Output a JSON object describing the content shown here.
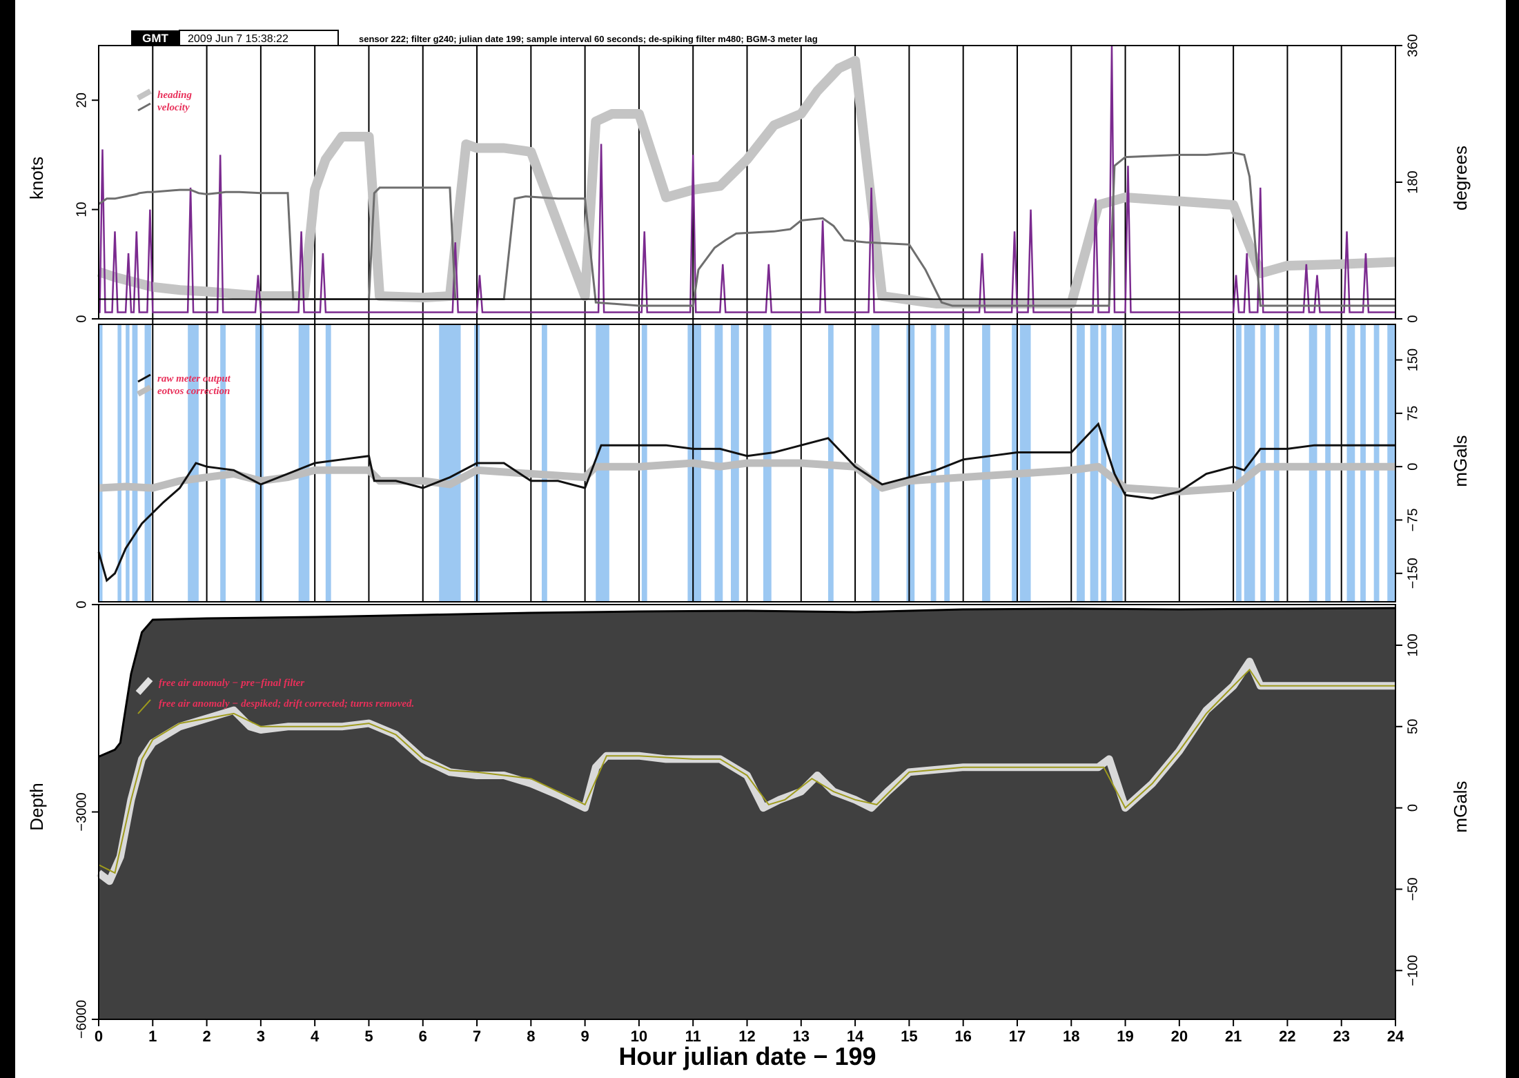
{
  "header": {
    "badge": "GMT",
    "timestamp": "2009 Jun  7 15:38:22",
    "caption": "sensor 222; filter g240; julian date 199; sample interval 60 seconds; de-spiking filter m480; BGM-3 meter lag"
  },
  "colors": {
    "velocity": "#6e6e6e",
    "heading": "#c4c4c4",
    "spikes": "#7b2a8f",
    "raw": "#111111",
    "eotvos": "#bdbdbd",
    "shade": "#9cc8f2",
    "bathy_fill": "#404040",
    "annotation": "#e8305a",
    "faa_final": "#9e9a1c"
  },
  "chart_data": [
    {
      "type": "line",
      "ylabel": "knots",
      "ylabel_right": "degrees",
      "ylim": [
        0,
        25
      ],
      "yticks": [
        0,
        10,
        20
      ],
      "ylim_right": [
        0,
        360
      ],
      "yticks_right": [
        0,
        180,
        360
      ],
      "grid": true,
      "legend_position": "top-left",
      "legend": [
        "heading",
        "velocity"
      ],
      "hline": 1.8,
      "series": [
        {
          "name": "velocity",
          "axis": "left",
          "x": [
            0,
            0.15,
            0.3,
            0.7,
            0.75,
            0.9,
            1.0,
            1.5,
            1.7,
            1.85,
            2.0,
            2.2,
            2.35,
            2.6,
            3.0,
            3.5,
            3.6,
            3.8,
            4.0,
            5.0,
            5.1,
            5.2,
            5.5,
            6.0,
            6.5,
            6.6,
            6.8,
            7.5,
            7.7,
            7.9,
            8.5,
            9.0,
            9.2,
            10.0,
            11.0,
            11.1,
            11.4,
            11.6,
            11.8,
            12.5,
            12.8,
            13.0,
            13.4,
            13.6,
            13.8,
            14.2,
            15.0,
            15.3,
            15.6,
            15.8,
            17.0,
            18.0,
            18.7,
            18.8,
            19.0,
            20.0,
            20.5,
            21.0,
            21.2,
            21.3,
            21.5,
            22.0,
            23.0,
            24.0
          ],
          "values": [
            10.5,
            11.0,
            11.0,
            11.4,
            11.5,
            11.6,
            11.6,
            11.8,
            11.8,
            11.5,
            11.4,
            11.5,
            11.6,
            11.6,
            11.5,
            11.5,
            1.8,
            1.8,
            1.8,
            1.8,
            11.5,
            12.0,
            12.0,
            12.0,
            12.0,
            1.8,
            1.8,
            1.8,
            11.0,
            11.2,
            11.0,
            11.0,
            1.5,
            1.2,
            1.2,
            4.5,
            6.5,
            7.2,
            7.8,
            8.0,
            8.2,
            9.0,
            9.2,
            8.5,
            7.2,
            7.0,
            6.8,
            4.5,
            1.5,
            1.2,
            1.2,
            1.2,
            1.2,
            14.0,
            14.8,
            15.0,
            15.0,
            15.2,
            15.0,
            13.0,
            1.2,
            1.2,
            1.2,
            1.2
          ]
        },
        {
          "name": "heading",
          "axis": "right",
          "x": [
            0,
            0.3,
            1.0,
            1.5,
            2.0,
            2.5,
            3.0,
            3.5,
            3.8,
            4.0,
            4.2,
            4.5,
            5.0,
            5.2,
            6.0,
            6.5,
            6.8,
            7.0,
            7.5,
            8.0,
            9.0,
            9.2,
            9.5,
            10.0,
            10.5,
            11.0,
            11.5,
            12.0,
            12.5,
            13.0,
            13.3,
            13.7,
            14.0,
            14.5,
            15.0,
            15.5,
            16.0,
            17.0,
            18.0,
            18.5,
            19.0,
            20.0,
            21.0,
            21.5,
            22.0,
            23.0,
            24.0
          ],
          "values": [
            62,
            55,
            42,
            38,
            36,
            33,
            30,
            30,
            30,
            170,
            210,
            240,
            240,
            30,
            28,
            30,
            230,
            225,
            225,
            220,
            30,
            260,
            270,
            270,
            160,
            170,
            175,
            210,
            255,
            270,
            300,
            330,
            340,
            30,
            25,
            20,
            20,
            20,
            20,
            150,
            160,
            155,
            150,
            60,
            70,
            72,
            75
          ]
        }
      ],
      "spikes": {
        "name": "spike detector",
        "times": [
          0.07,
          0.3,
          0.55,
          0.7,
          0.95,
          1.7,
          2.25,
          2.95,
          3.75,
          4.15,
          6.6,
          7.05,
          9.3,
          10.1,
          11.0,
          11.55,
          12.4,
          13.4,
          14.3,
          16.35,
          16.95,
          17.25,
          18.45,
          18.75,
          19.05,
          21.05,
          21.25,
          21.5,
          22.35,
          22.55,
          23.1,
          23.45
        ],
        "heights": [
          15.5,
          8,
          6,
          8,
          10,
          12,
          15,
          4,
          8,
          6,
          7,
          4,
          16,
          8,
          15,
          5,
          5,
          9,
          12,
          6,
          8,
          10,
          11,
          25,
          14,
          4,
          6,
          12,
          5,
          4,
          8,
          6
        ]
      }
    },
    {
      "type": "line",
      "ylabel_right": "mGals",
      "ylim": [
        -190,
        200
      ],
      "yticks_right": [
        -150,
        -75,
        0,
        75,
        150
      ],
      "legend_position": "top-left",
      "legend": [
        "raw meter output",
        "eotvos correction"
      ],
      "shaded_intervals": [
        [
          0.0,
          0.07
        ],
        [
          0.35,
          0.42
        ],
        [
          0.5,
          0.57
        ],
        [
          0.62,
          0.72
        ],
        [
          0.85,
          0.97
        ],
        [
          1.65,
          1.85
        ],
        [
          2.25,
          2.35
        ],
        [
          2.9,
          3.05
        ],
        [
          3.7,
          3.9
        ],
        [
          4.2,
          4.3
        ],
        [
          6.3,
          6.7
        ],
        [
          6.95,
          7.05
        ],
        [
          8.2,
          8.3
        ],
        [
          9.2,
          9.45
        ],
        [
          10.05,
          10.15
        ],
        [
          10.9,
          11.15
        ],
        [
          11.4,
          11.55
        ],
        [
          11.7,
          11.85
        ],
        [
          12.3,
          12.45
        ],
        [
          13.5,
          13.6
        ],
        [
          14.3,
          14.45
        ],
        [
          14.95,
          15.1
        ],
        [
          15.4,
          15.5
        ],
        [
          15.65,
          15.75
        ],
        [
          16.35,
          16.5
        ],
        [
          16.9,
          17.0
        ],
        [
          17.05,
          17.25
        ],
        [
          18.1,
          18.25
        ],
        [
          18.35,
          18.5
        ],
        [
          18.55,
          18.65
        ],
        [
          18.75,
          18.95
        ],
        [
          21.05,
          21.15
        ],
        [
          21.2,
          21.4
        ],
        [
          21.5,
          21.6
        ],
        [
          21.75,
          21.85
        ],
        [
          22.4,
          22.55
        ],
        [
          22.7,
          22.8
        ],
        [
          23.1,
          23.25
        ],
        [
          23.35,
          23.45
        ],
        [
          23.6,
          23.7
        ],
        [
          23.85,
          24.0
        ]
      ],
      "series": [
        {
          "name": "raw meter output",
          "x": [
            0,
            0.15,
            0.3,
            0.5,
            0.8,
            1.2,
            1.5,
            1.8,
            2.0,
            2.5,
            3.0,
            3.5,
            4.0,
            4.5,
            5.0,
            5.1,
            5.5,
            6.0,
            6.5,
            7.0,
            7.5,
            8.0,
            8.5,
            9.0,
            9.3,
            9.5,
            10.0,
            10.5,
            11.0,
            11.5,
            12.0,
            12.5,
            13.0,
            13.5,
            14.0,
            14.5,
            15.0,
            15.5,
            16.0,
            16.5,
            17.0,
            17.5,
            18.0,
            18.5,
            18.8,
            19.0,
            19.5,
            20.0,
            20.5,
            21.0,
            21.2,
            21.5,
            22.0,
            22.5,
            23.0,
            23.5,
            24.0
          ],
          "values": [
            -120,
            -160,
            -150,
            -115,
            -80,
            -50,
            -30,
            5,
            0,
            -5,
            -25,
            -10,
            5,
            10,
            15,
            -20,
            -20,
            -30,
            -15,
            5,
            5,
            -20,
            -20,
            -30,
            30,
            30,
            30,
            30,
            25,
            25,
            15,
            20,
            30,
            40,
            0,
            -25,
            -15,
            -5,
            10,
            15,
            20,
            20,
            20,
            60,
            -10,
            -40,
            -45,
            -35,
            -10,
            0,
            -5,
            25,
            25,
            30,
            30,
            30,
            30
          ]
        },
        {
          "name": "eotvos correction",
          "x": [
            0,
            0.5,
            1.0,
            1.5,
            2.0,
            2.5,
            3.0,
            3.5,
            4.0,
            5.0,
            5.2,
            6.0,
            6.5,
            7.0,
            8.0,
            9.0,
            9.2,
            10.0,
            11.0,
            11.5,
            12.0,
            13.0,
            14.0,
            14.5,
            15.0,
            16.0,
            17.0,
            18.0,
            18.5,
            19.0,
            20.0,
            21.0,
            21.5,
            22.0,
            23.0,
            24.0
          ],
          "values": [
            -30,
            -28,
            -30,
            -20,
            -15,
            -10,
            -20,
            -15,
            -5,
            -5,
            -20,
            -20,
            -25,
            -5,
            -10,
            -15,
            0,
            0,
            5,
            0,
            5,
            5,
            0,
            -30,
            -20,
            -15,
            -10,
            -5,
            0,
            -30,
            -35,
            -30,
            0,
            0,
            0,
            0
          ]
        }
      ]
    },
    {
      "type": "line",
      "xlabel": "Hour julian date − 199",
      "ylabel": "Depth",
      "ylim": [
        -6000,
        0
      ],
      "yticks": [
        -6000,
        -3000,
        0
      ],
      "ylabel_right": "mGals",
      "ylim_right": [
        -130,
        125
      ],
      "yticks_right": [
        -100,
        -50,
        0,
        50,
        100
      ],
      "xlim": [
        0,
        24
      ],
      "xticks": [
        0,
        1,
        2,
        3,
        4,
        5,
        6,
        7,
        8,
        9,
        10,
        11,
        12,
        13,
        14,
        15,
        16,
        17,
        18,
        19,
        20,
        21,
        22,
        23,
        24
      ],
      "legend_position": "top-left",
      "legend": [
        "free air anomaly − pre−final filter",
        "free air anomaly − despiked; drift corrected; turns removed."
      ],
      "series": [
        {
          "name": "bathymetry",
          "axis": "left",
          "x": [
            0,
            0.3,
            0.4,
            0.5,
            0.6,
            0.8,
            1.0,
            2.0,
            4.0,
            6.0,
            8.0,
            10.0,
            12.0,
            14.0,
            16.0,
            18.0,
            20.0,
            22.0,
            24.0
          ],
          "values": [
            -2200,
            -2100,
            -2000,
            -1500,
            -1000,
            -400,
            -220,
            -200,
            -180,
            -150,
            -120,
            -100,
            -90,
            -110,
            -70,
            -60,
            -70,
            -60,
            -50
          ]
        },
        {
          "name": "free air anomaly − pre−final filter",
          "axis": "right",
          "x": [
            0,
            0.2,
            0.4,
            0.6,
            0.8,
            1.0,
            1.5,
            2.0,
            2.5,
            2.8,
            3.0,
            3.5,
            4.0,
            4.5,
            5.0,
            5.5,
            6.0,
            6.5,
            7.0,
            7.5,
            8.0,
            8.5,
            9.0,
            9.2,
            9.4,
            10.0,
            10.5,
            11.0,
            11.5,
            12.0,
            12.3,
            12.6,
            13.0,
            13.3,
            13.6,
            14.0,
            14.3,
            14.6,
            15.0,
            16.0,
            17.0,
            18.0,
            18.5,
            18.7,
            19.0,
            19.5,
            20.0,
            20.5,
            21.0,
            21.3,
            21.5,
            22.0,
            23.0,
            24.0
          ],
          "values": [
            -40,
            -45,
            -30,
            5,
            30,
            40,
            50,
            55,
            60,
            50,
            48,
            50,
            50,
            50,
            52,
            45,
            30,
            22,
            20,
            20,
            15,
            8,
            0,
            25,
            32,
            32,
            30,
            30,
            30,
            20,
            0,
            5,
            10,
            20,
            10,
            5,
            0,
            10,
            22,
            25,
            25,
            25,
            25,
            30,
            0,
            15,
            35,
            60,
            75,
            90,
            75,
            75,
            75,
            75
          ]
        },
        {
          "name": "free air anomaly − despiked; drift corrected; turns removed.",
          "axis": "right",
          "x": [
            0,
            0.3,
            0.6,
            0.8,
            1.0,
            1.5,
            2.0,
            2.5,
            3.0,
            3.5,
            4.0,
            4.5,
            5.0,
            5.5,
            6.0,
            6.5,
            7.0,
            8.0,
            8.5,
            9.0,
            9.4,
            10.0,
            11.0,
            11.5,
            12.0,
            12.4,
            12.7,
            13.2,
            13.6,
            14.0,
            14.4,
            15.0,
            16.0,
            17.0,
            18.0,
            18.6,
            19.0,
            19.5,
            20.0,
            20.5,
            21.0,
            21.3,
            21.5,
            22.0,
            23.0,
            24.0
          ],
          "values": [
            -35,
            -40,
            5,
            30,
            42,
            52,
            55,
            58,
            50,
            50,
            50,
            50,
            52,
            45,
            30,
            23,
            22,
            18,
            10,
            2,
            32,
            32,
            30,
            30,
            20,
            2,
            5,
            18,
            10,
            5,
            2,
            22,
            25,
            25,
            25,
            25,
            0,
            15,
            35,
            58,
            75,
            85,
            75,
            75,
            75,
            75
          ]
        }
      ]
    }
  ]
}
